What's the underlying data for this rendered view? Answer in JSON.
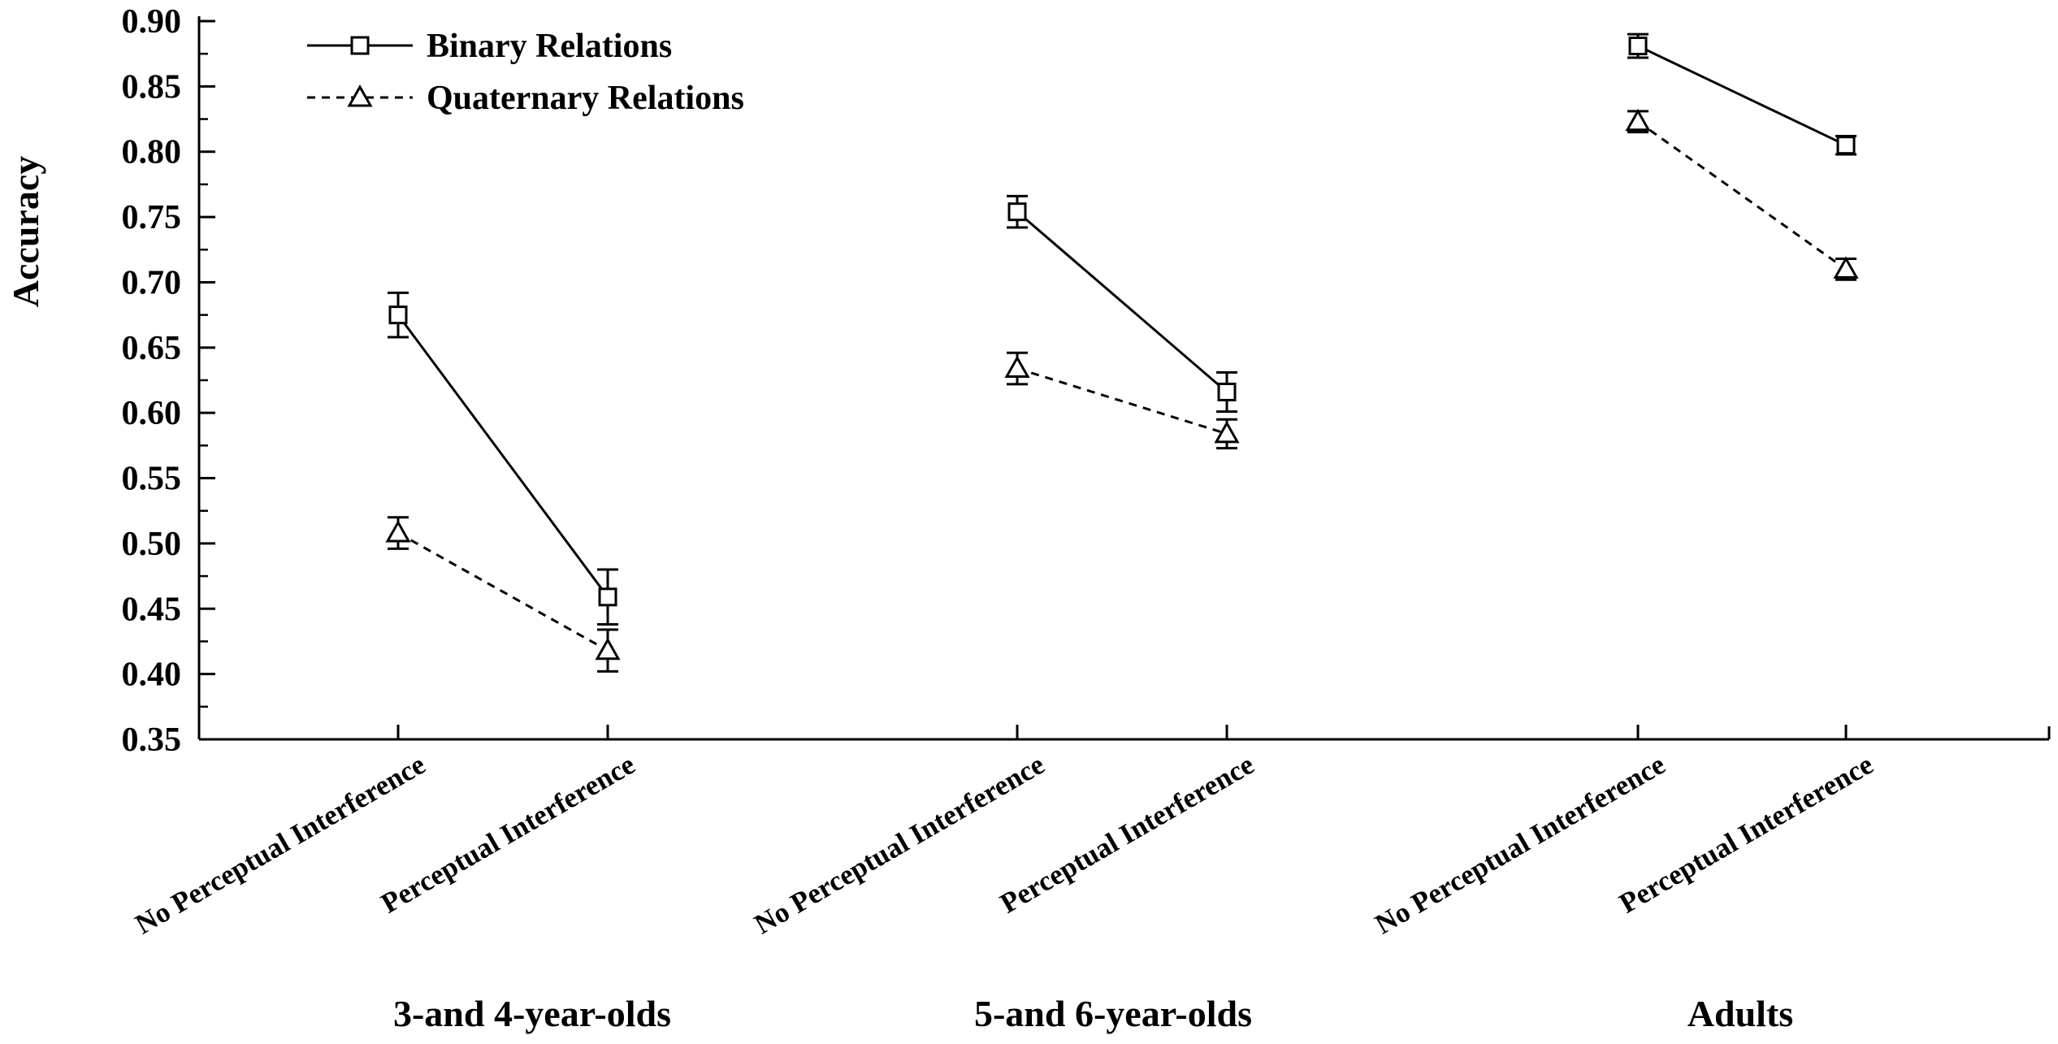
{
  "chart_data": {
    "type": "line",
    "ylabel": "Accuracy",
    "ylim": [
      0.35,
      0.9
    ],
    "yticks": [
      "0.35",
      "0.40",
      "0.45",
      "0.50",
      "0.55",
      "0.60",
      "0.65",
      "0.70",
      "0.75",
      "0.80",
      "0.85",
      "0.90"
    ],
    "grid": false,
    "legend_position": "top-left",
    "groups": [
      {
        "label": "3-and 4-year-olds",
        "categories": [
          "No Perceptual Interference",
          "Perceptual Interference"
        ]
      },
      {
        "label": "5-and 6-year-olds",
        "categories": [
          "No Perceptual Interference",
          "Perceptual Interference"
        ]
      },
      {
        "label": "Adults",
        "categories": [
          "No Perceptual Interference",
          "Perceptual Interference"
        ]
      }
    ],
    "series": [
      {
        "name": "Binary Relations",
        "marker": "square",
        "line_style": "solid",
        "values": [
          0.675,
          0.459,
          0.754,
          0.616,
          0.881,
          0.805
        ],
        "errors": [
          0.017,
          0.021,
          0.012,
          0.015,
          0.009,
          0.007
        ]
      },
      {
        "name": "Quaternary Relations",
        "marker": "triangle",
        "line_style": "dashed",
        "values": [
          0.508,
          0.418,
          0.634,
          0.584,
          0.823,
          0.71
        ],
        "errors": [
          0.012,
          0.016,
          0.012,
          0.011,
          0.008,
          0.008
        ]
      }
    ]
  }
}
